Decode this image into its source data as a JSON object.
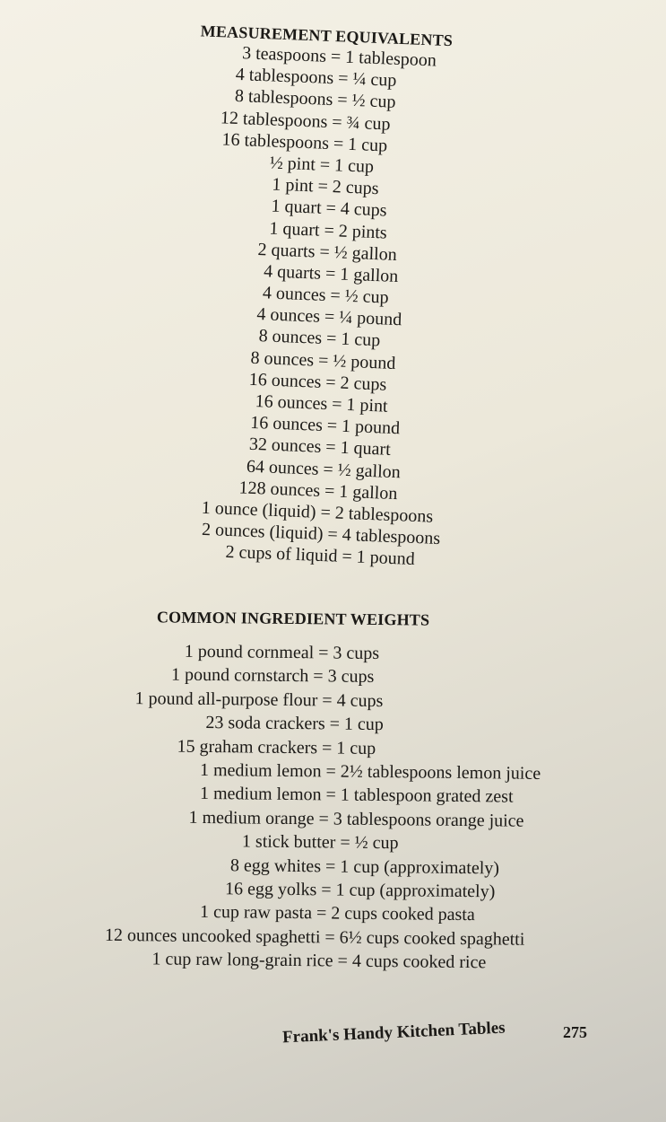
{
  "sections": [
    {
      "heading": "MEASUREMENT EQUIVALENTS",
      "lines": [
        "3 teaspoons = 1 tablespoon",
        "4 tablespoons = ¼ cup",
        "8 tablespoons = ½ cup",
        "12 tablespoons = ¾ cup",
        "16 tablespoons = 1 cup",
        "½ pint = 1 cup",
        "1 pint = 2 cups",
        "1 quart = 4 cups",
        "1 quart = 2 pints",
        "2 quarts = ½ gallon",
        "4 quarts = 1 gallon",
        "4 ounces = ½ cup",
        "4 ounces = ¼ pound",
        "8 ounces = 1 cup",
        "8 ounces = ½ pound",
        "16 ounces = 2 cups",
        "16 ounces = 1 pint",
        "16 ounces = 1 pound",
        "32 ounces = 1 quart",
        "64 ounces = ½ gallon",
        "128 ounces = 1 gallon",
        "1 ounce (liquid) = 2 tablespoons",
        "2 ounces (liquid) = 4 tablespoons",
        "2 cups of liquid = 1 pound"
      ]
    },
    {
      "heading": "COMMON INGREDIENT WEIGHTS",
      "lines": [
        "1 pound cornmeal = 3 cups",
        "1 pound cornstarch = 3 cups",
        "1 pound all-purpose flour = 4 cups",
        "23 soda crackers = 1 cup",
        "15 graham crackers = 1 cup",
        "1 medium lemon = 2½ tablespoons lemon juice",
        "1 medium lemon = 1 tablespoon grated zest",
        "1 medium orange = 3 tablespoons orange juice",
        "1 stick butter = ½ cup",
        "8 egg whites = 1 cup (approximately)",
        "16 egg yolks = 1 cup (approximately)",
        "1 cup raw pasta = 2 cups cooked pasta",
        "12 ounces uncooked spaghetti = 6½ cups cooked spaghetti",
        "1 cup raw long-grain rice = 4 cups cooked rice"
      ]
    }
  ],
  "footer": {
    "running_title": "Frank's Handy Kitchen Tables",
    "page_number": "275"
  }
}
